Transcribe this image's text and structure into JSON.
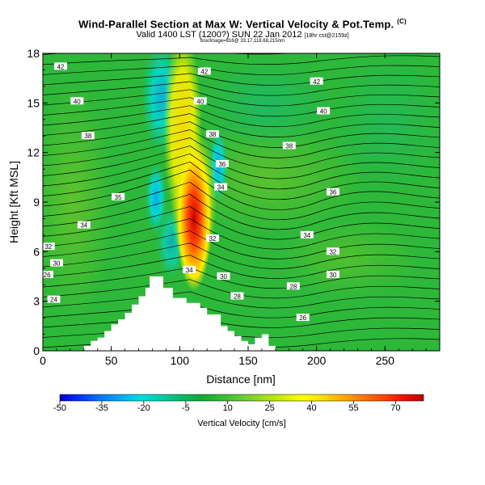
{
  "header": {
    "title": "Wind-Parallel Section at Max W: Vertical Velocity & Pot.Temp.",
    "title_mark": "(C)",
    "subtitle_main": "Valid 1400 LST (1200?) SUN 22 Jan 2012",
    "subtitle_tail": "[18hr cst@2159z]",
    "subtitle2": "box/Image=816@ 33.17,118.68,215nm"
  },
  "chart_data": {
    "type": "heatmap",
    "title": "Wind-Parallel Section at Max W: Vertical Velocity & Pot.Temp.",
    "xlabel": "Distance [nm]",
    "ylabel": "Height [Kft MSL]",
    "xlim": [
      0,
      290
    ],
    "ylim": [
      0,
      18
    ],
    "x_ticks": [
      "0",
      "50",
      "100",
      "150",
      "200",
      "250"
    ],
    "x_tick_values": [
      0,
      50,
      100,
      150,
      200,
      250
    ],
    "y_ticks": [
      "0",
      "3",
      "6",
      "9",
      "12",
      "15",
      "18"
    ],
    "y_tick_values": [
      0,
      3,
      6,
      9,
      12,
      15,
      18
    ],
    "colorbar": {
      "label": "Vertical Velocity [cm/s]",
      "tick_labels": [
        "-50",
        "-35",
        "-20",
        "-5",
        "10",
        "25",
        "40",
        "55",
        "70"
      ],
      "range": [
        -50,
        80
      ],
      "colors": [
        "#0000cc",
        "#0033ff",
        "#0077ff",
        "#00aaff",
        "#00dddd",
        "#00ccaa",
        "#00bb66",
        "#11aa33",
        "#33bb33",
        "#66cc33",
        "#99dd22",
        "#ccee00",
        "#ffff00",
        "#ffdd00",
        "#ffaa00",
        "#ff7700",
        "#ff4400",
        "#ee1100",
        "#bb0000"
      ]
    },
    "contour_labels": [
      {
        "x": 13,
        "y": 17.2,
        "value": "42"
      },
      {
        "x": 25,
        "y": 15.1,
        "value": "40"
      },
      {
        "x": 33,
        "y": 13.0,
        "value": "38"
      },
      {
        "x": 55,
        "y": 9.3,
        "value": "35"
      },
      {
        "x": 30,
        "y": 7.6,
        "value": "34"
      },
      {
        "x": 4,
        "y": 6.3,
        "value": "32"
      },
      {
        "x": 10,
        "y": 5.3,
        "value": "30"
      },
      {
        "x": 3,
        "y": 4.6,
        "value": "26"
      },
      {
        "x": 8,
        "y": 3.1,
        "value": "24"
      },
      {
        "x": 118,
        "y": 16.9,
        "value": "42"
      },
      {
        "x": 115,
        "y": 15.1,
        "value": "40"
      },
      {
        "x": 124,
        "y": 13.1,
        "value": "38"
      },
      {
        "x": 131,
        "y": 11.3,
        "value": "36"
      },
      {
        "x": 130,
        "y": 9.9,
        "value": "34"
      },
      {
        "x": 124,
        "y": 6.8,
        "value": "32"
      },
      {
        "x": 107,
        "y": 4.9,
        "value": "34"
      },
      {
        "x": 132,
        "y": 4.5,
        "value": "30"
      },
      {
        "x": 142,
        "y": 3.3,
        "value": "28"
      },
      {
        "x": 200,
        "y": 16.3,
        "value": "42"
      },
      {
        "x": 205,
        "y": 14.5,
        "value": "40"
      },
      {
        "x": 180,
        "y": 12.4,
        "value": "38"
      },
      {
        "x": 212,
        "y": 9.6,
        "value": "36"
      },
      {
        "x": 193,
        "y": 7.0,
        "value": "34"
      },
      {
        "x": 212,
        "y": 6.0,
        "value": "32"
      },
      {
        "x": 212,
        "y": 4.6,
        "value": "30"
      },
      {
        "x": 183,
        "y": 3.9,
        "value": "28"
      },
      {
        "x": 190,
        "y": 2.0,
        "value": "26"
      }
    ],
    "terrain_profile": [
      [
        0,
        0
      ],
      [
        30,
        0
      ],
      [
        30,
        0.3
      ],
      [
        35,
        0.3
      ],
      [
        35,
        0.6
      ],
      [
        40,
        0.6
      ],
      [
        40,
        0.8
      ],
      [
        45,
        0.8
      ],
      [
        45,
        1.2
      ],
      [
        50,
        1.2
      ],
      [
        50,
        1.6
      ],
      [
        55,
        1.6
      ],
      [
        55,
        1.9
      ],
      [
        60,
        1.9
      ],
      [
        60,
        2.3
      ],
      [
        65,
        2.3
      ],
      [
        65,
        2.8
      ],
      [
        70,
        2.8
      ],
      [
        70,
        3.3
      ],
      [
        75,
        3.3
      ],
      [
        75,
        3.8
      ],
      [
        78,
        3.8
      ],
      [
        78,
        4.5
      ],
      [
        88,
        4.5
      ],
      [
        88,
        3.8
      ],
      [
        95,
        3.8
      ],
      [
        95,
        3.2
      ],
      [
        105,
        3.2
      ],
      [
        105,
        2.9
      ],
      [
        115,
        2.9
      ],
      [
        115,
        2.6
      ],
      [
        120,
        2.6
      ],
      [
        120,
        2.2
      ],
      [
        130,
        2.2
      ],
      [
        130,
        1.5
      ],
      [
        135,
        1.5
      ],
      [
        135,
        1.2
      ],
      [
        140,
        1.2
      ],
      [
        140,
        0.9
      ],
      [
        145,
        0.9
      ],
      [
        145,
        0.6
      ],
      [
        150,
        0.6
      ],
      [
        150,
        0.4
      ],
      [
        155,
        0.4
      ],
      [
        155,
        0.8
      ],
      [
        160,
        0.8
      ],
      [
        160,
        1.0
      ],
      [
        165,
        1.0
      ],
      [
        165,
        0.3
      ],
      [
        170,
        0.3
      ],
      [
        170,
        0
      ],
      [
        290,
        0
      ]
    ]
  }
}
